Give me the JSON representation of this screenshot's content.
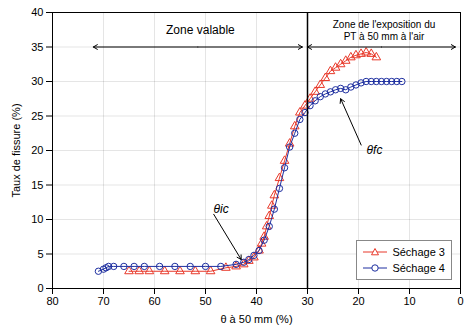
{
  "chart_data": {
    "type": "line",
    "xlabel": "θ à 50 mm (%)",
    "ylabel": "Taux de fissure (%)",
    "xlim": [
      80,
      0
    ],
    "ylim": [
      0,
      40
    ],
    "xticks": [
      80,
      70,
      60,
      50,
      40,
      30,
      20,
      10,
      0
    ],
    "yticks": [
      0,
      5,
      10,
      15,
      20,
      25,
      30,
      35,
      40
    ],
    "grid": true,
    "legend": "lower right",
    "vlines": [
      30
    ],
    "double_arrows": [
      {
        "x1": 72,
        "x2": 31,
        "y": 35
      },
      {
        "x1": 30,
        "x2": 1,
        "y": 35
      }
    ],
    "annotations": [
      {
        "text": "Zone valable",
        "x": 51,
        "y": 37.5
      },
      {
        "text": "Zone de l'exposition du\nPT à 50 mm à l'air",
        "x": 15,
        "y": 39.0
      },
      {
        "text": "θic",
        "x": 49,
        "y": 11.5,
        "arrow_x": 43,
        "arrow_y": 4.2
      },
      {
        "text": "θfc",
        "x": 19,
        "y": 20,
        "arrow_x": 23.5,
        "arrow_y": 27.5
      }
    ],
    "series": [
      {
        "name": "Séchage 3",
        "color": "#e8392a",
        "marker": "triangle",
        "x": [
          65.0,
          63.0,
          61.0,
          58.0,
          55.0,
          52.0,
          49.0,
          46.0,
          44.0,
          42.5,
          41.5,
          40.5,
          39.5,
          39.0,
          38.5,
          38.0,
          37.5,
          37.0,
          36.5,
          35.5,
          34.5,
          33.5,
          32.5,
          31.5,
          30.5,
          29.5,
          28.5,
          27.5,
          26.5,
          25.5,
          24.5,
          23.5,
          22.5,
          21.5,
          20.5,
          19.5,
          18.5,
          17.5,
          16.5
        ],
        "values": [
          2.5,
          2.5,
          2.5,
          2.5,
          2.5,
          2.5,
          2.5,
          3.0,
          3.2,
          3.5,
          4.0,
          4.5,
          5.5,
          6.5,
          7.5,
          9.0,
          10.5,
          12.0,
          13.5,
          16.0,
          18.5,
          21.0,
          23.5,
          25.5,
          26.5,
          27.5,
          28.5,
          29.5,
          30.5,
          31.5,
          32.0,
          32.5,
          33.0,
          33.5,
          33.8,
          34.0,
          34.2,
          34.0,
          33.5
        ]
      },
      {
        "name": "Séchage 4",
        "color": "#1e2fa0",
        "marker": "circle",
        "x": [
          71.0,
          70.0,
          69.5,
          69.0,
          68.0,
          66.0,
          64.0,
          62.0,
          59.0,
          56.0,
          53.0,
          50.0,
          47.0,
          44.0,
          42.5,
          41.5,
          40.5,
          39.5,
          38.5,
          37.5,
          36.5,
          35.5,
          34.5,
          33.5,
          32.5,
          31.5,
          30.5,
          29.5,
          28.5,
          27.5,
          26.5,
          25.5,
          24.5,
          23.5,
          22.5,
          21.5,
          20.5,
          19.5,
          18.5,
          17.5,
          16.5,
          15.5,
          14.5,
          13.5,
          12.5,
          11.5
        ],
        "values": [
          2.5,
          2.8,
          3.0,
          3.2,
          3.2,
          3.2,
          3.2,
          3.2,
          3.2,
          3.2,
          3.2,
          3.2,
          3.2,
          3.5,
          3.8,
          4.2,
          4.8,
          5.5,
          7.0,
          9.0,
          11.5,
          14.5,
          17.5,
          20.5,
          22.5,
          24.5,
          25.5,
          26.5,
          27.2,
          27.8,
          28.2,
          28.5,
          28.8,
          29.0,
          28.8,
          29.2,
          29.5,
          29.8,
          30.0,
          30.0,
          30.0,
          30.0,
          30.0,
          30.0,
          30.0,
          30.0
        ]
      }
    ]
  }
}
